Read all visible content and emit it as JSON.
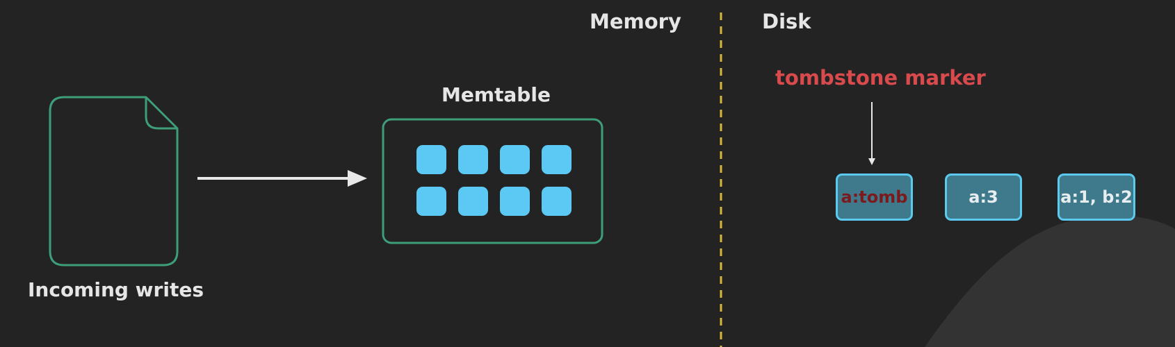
{
  "sections": {
    "memory": "Memory",
    "disk": "Disk"
  },
  "memtable": {
    "title": "Memtable",
    "entry_count": 8
  },
  "incoming_writes": {
    "label": "Incoming writes"
  },
  "disk": {
    "annotation": "tombstone marker",
    "blocks": [
      {
        "text": "a:tomb"
      },
      {
        "text": "a:3"
      },
      {
        "text": "a:1, b:2"
      }
    ]
  },
  "colors": {
    "background": "#232323",
    "outline_green": "#3e9e79",
    "memtable_cell": "#5cc9f5",
    "divider": "#d8b83a",
    "tombstone_red": "#d94a4d",
    "disk_block_fill": "#3e7a8c",
    "disk_block_border": "#5cc9ee",
    "arrow": "#e8e8e8"
  }
}
